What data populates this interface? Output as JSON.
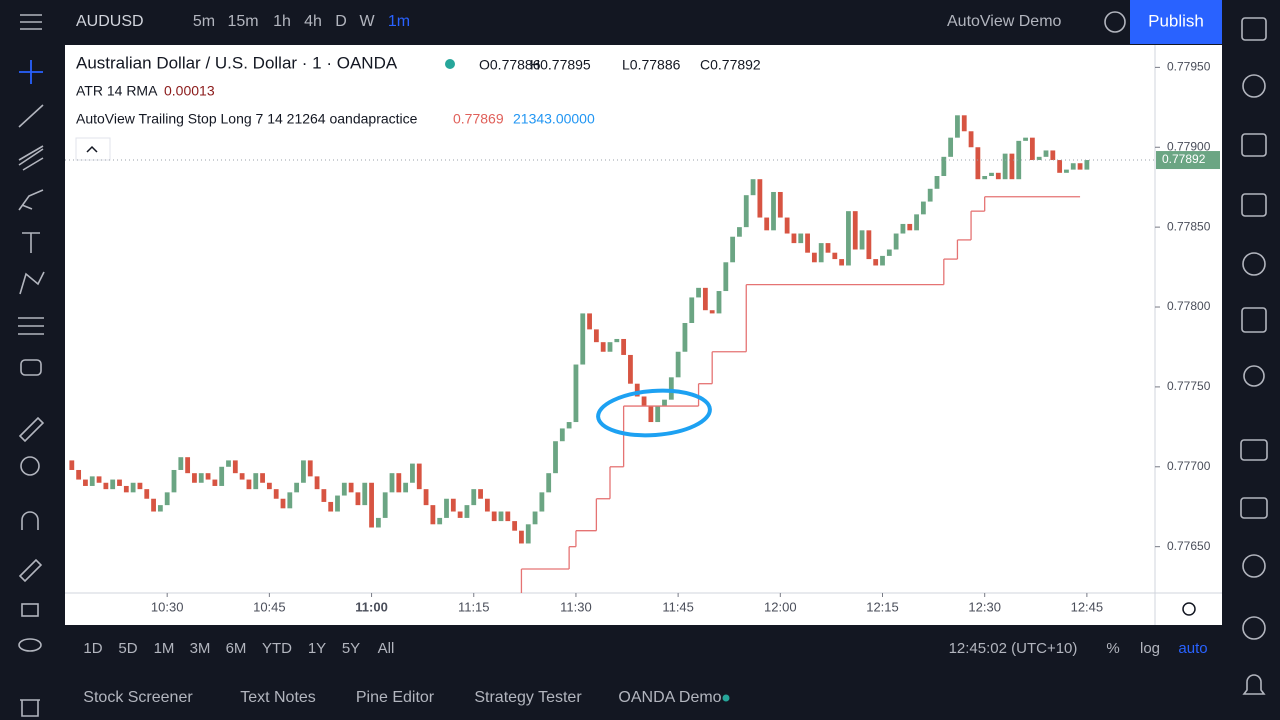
{
  "ui": {
    "symbol": "AUDUSD",
    "intervals": [
      "5m",
      "15m",
      "1h",
      "4h",
      "D",
      "W",
      "1m"
    ],
    "layout_name": "AutoView Demo",
    "publish": "Publish",
    "ranges": [
      "1D",
      "5D",
      "1M",
      "3M",
      "6M",
      "YTD",
      "1Y",
      "5Y",
      "All"
    ],
    "clock": "12:45:02 (UTC+10)",
    "scale_options": [
      "%",
      "log",
      "auto"
    ],
    "tabs": [
      "Stock Screener",
      "Text Notes",
      "Pine Editor",
      "Strategy Tester",
      "OANDA Demo"
    ]
  },
  "legend": {
    "title": "Australian Dollar / U.S. Dollar · 1 · OANDA",
    "ohlc": [
      "O0.77886",
      "H0.77895",
      "L0.77886",
      "C0.77892"
    ],
    "atr_name": "ATR 14 RMA",
    "atr_value": "0.00013",
    "stop_name": "AutoView Trailing Stop Long 7 14 21264 oandapractice",
    "stop_value": "0.77869",
    "stop_value2": "21343.00000"
  },
  "chart_data": {
    "type": "candlestick",
    "up_color": "#6ba583",
    "down_color": "#d75442",
    "x": [
      "10:16",
      "10:17",
      "10:18",
      "10:19",
      "10:20",
      "10:21",
      "10:22",
      "10:23",
      "10:24",
      "10:25",
      "10:26",
      "10:27",
      "10:28",
      "10:29",
      "10:30",
      "10:31",
      "10:32",
      "10:33",
      "10:34",
      "10:35",
      "10:36",
      "10:37",
      "10:38",
      "10:39",
      "10:40",
      "10:41",
      "10:42",
      "10:43",
      "10:44",
      "10:45",
      "10:46",
      "10:47",
      "10:48",
      "10:49",
      "10:50",
      "10:51",
      "10:52",
      "10:53",
      "10:54",
      "10:55",
      "10:56",
      "10:57",
      "10:58",
      "10:59",
      "11:00",
      "11:01",
      "11:02",
      "11:03",
      "11:04",
      "11:05",
      "11:06",
      "11:07",
      "11:08",
      "11:09",
      "11:10",
      "11:11",
      "11:12",
      "11:13",
      "11:14",
      "11:15",
      "11:16",
      "11:17",
      "11:18",
      "11:19",
      "11:20",
      "11:21",
      "11:22",
      "11:23",
      "11:24",
      "11:25",
      "11:26",
      "11:27",
      "11:28",
      "11:29",
      "11:30",
      "11:31",
      "11:32",
      "11:33",
      "11:34",
      "11:35",
      "11:36",
      "11:37",
      "11:38",
      "11:39",
      "11:40",
      "11:41",
      "11:42",
      "11:43",
      "11:44",
      "11:45",
      "11:46",
      "11:47",
      "11:48",
      "11:49",
      "11:50",
      "11:51",
      "11:52",
      "11:53",
      "11:54",
      "11:55",
      "11:56",
      "11:57",
      "11:58",
      "11:59",
      "12:00",
      "12:01",
      "12:02",
      "12:03",
      "12:04",
      "12:05",
      "12:06",
      "12:07",
      "12:08",
      "12:09",
      "12:10",
      "12:11",
      "12:12",
      "12:13",
      "12:14",
      "12:15",
      "12:16",
      "12:17",
      "12:18",
      "12:19",
      "12:20",
      "12:21",
      "12:22",
      "12:23",
      "12:24",
      "12:25",
      "12:26",
      "12:27",
      "12:28",
      "12:29",
      "12:30",
      "12:31",
      "12:32",
      "12:33",
      "12:34",
      "12:35",
      "12:36",
      "12:37",
      "12:38",
      "12:39",
      "12:40",
      "12:41",
      "12:42",
      "12:43",
      "12:44",
      "12:45"
    ],
    "open": [
      0.77704,
      0.77698,
      0.77692,
      0.77688,
      0.77694,
      0.7769,
      0.77686,
      0.77692,
      0.77688,
      0.77684,
      0.7769,
      0.77686,
      0.7768,
      0.77672,
      0.77676,
      0.77684,
      0.77698,
      0.77706,
      0.77696,
      0.7769,
      0.77696,
      0.77692,
      0.77688,
      0.777,
      0.77704,
      0.77696,
      0.77692,
      0.77686,
      0.77696,
      0.7769,
      0.77686,
      0.7768,
      0.77674,
      0.77684,
      0.7769,
      0.77704,
      0.77694,
      0.77686,
      0.77678,
      0.77672,
      0.77682,
      0.7769,
      0.77684,
      0.77676,
      0.7769,
      0.77662,
      0.77668,
      0.77684,
      0.77696,
      0.77684,
      0.7769,
      0.77702,
      0.77686,
      0.77676,
      0.77664,
      0.77668,
      0.7768,
      0.77672,
      0.77668,
      0.77676,
      0.77686,
      0.7768,
      0.77672,
      0.77666,
      0.77672,
      0.77666,
      0.7766,
      0.77652,
      0.77664,
      0.77672,
      0.77684,
      0.77696,
      0.77716,
      0.77724,
      0.77728,
      0.77764,
      0.77796,
      0.77786,
      0.77778,
      0.77772,
      0.77778,
      0.7778,
      0.7777,
      0.77752,
      0.77744,
      0.77738,
      0.77728,
      0.77738,
      0.77742,
      0.77756,
      0.77772,
      0.7779,
      0.77806,
      0.77812,
      0.77798,
      0.77796,
      0.7781,
      0.77828,
      0.77844,
      0.7785,
      0.7787,
      0.7788,
      0.77856,
      0.77848,
      0.77872,
      0.77856,
      0.77846,
      0.7784,
      0.77846,
      0.77834,
      0.77828,
      0.7784,
      0.77834,
      0.7783,
      0.77826,
      0.7786,
      0.77836,
      0.77848,
      0.7783,
      0.77826,
      0.77832,
      0.77836,
      0.77846,
      0.77852,
      0.77848,
      0.77858,
      0.77866,
      0.77874,
      0.77882,
      0.77894,
      0.77906,
      0.7792,
      0.7791,
      0.779,
      0.7788,
      0.77882,
      0.77884,
      0.7788,
      0.77896,
      0.7788,
      0.77904,
      0.77906,
      0.77892,
      0.77894,
      0.77898,
      0.77892,
      0.77884,
      0.77886,
      0.7789,
      0.77886
    ],
    "close": [
      0.77698,
      0.77692,
      0.77688,
      0.77694,
      0.7769,
      0.77686,
      0.77692,
      0.77688,
      0.77684,
      0.7769,
      0.77686,
      0.7768,
      0.77672,
      0.77676,
      0.77684,
      0.77698,
      0.77706,
      0.77696,
      0.7769,
      0.77696,
      0.77692,
      0.77688,
      0.777,
      0.77704,
      0.77696,
      0.77692,
      0.77686,
      0.77696,
      0.7769,
      0.77686,
      0.7768,
      0.77674,
      0.77684,
      0.7769,
      0.77704,
      0.77694,
      0.77686,
      0.77678,
      0.77672,
      0.77682,
      0.7769,
      0.77684,
      0.77676,
      0.7769,
      0.77662,
      0.77668,
      0.77684,
      0.77696,
      0.77684,
      0.7769,
      0.77702,
      0.77686,
      0.77676,
      0.77664,
      0.77668,
      0.7768,
      0.77672,
      0.77668,
      0.77676,
      0.77686,
      0.7768,
      0.77672,
      0.77666,
      0.77672,
      0.77666,
      0.7766,
      0.77652,
      0.77664,
      0.77672,
      0.77684,
      0.77696,
      0.77716,
      0.77724,
      0.77728,
      0.77764,
      0.77796,
      0.77786,
      0.77778,
      0.77772,
      0.77778,
      0.7778,
      0.7777,
      0.77752,
      0.77744,
      0.77738,
      0.77728,
      0.77738,
      0.77742,
      0.77756,
      0.77772,
      0.7779,
      0.77806,
      0.77812,
      0.77798,
      0.77796,
      0.7781,
      0.77828,
      0.77844,
      0.7785,
      0.7787,
      0.7788,
      0.77856,
      0.77848,
      0.77872,
      0.77856,
      0.77846,
      0.7784,
      0.77846,
      0.77834,
      0.77828,
      0.7784,
      0.77834,
      0.7783,
      0.77826,
      0.7786,
      0.77836,
      0.77848,
      0.7783,
      0.77826,
      0.77832,
      0.77836,
      0.77846,
      0.77852,
      0.77848,
      0.77858,
      0.77866,
      0.77874,
      0.77882,
      0.77894,
      0.77906,
      0.7792,
      0.7791,
      0.779,
      0.7788,
      0.77882,
      0.77884,
      0.7788,
      0.77896,
      0.7788,
      0.77904,
      0.77906,
      0.77892,
      0.77894,
      0.77898,
      0.77892,
      0.77884,
      0.77886,
      0.7789,
      0.77886,
      0.77892
    ],
    "stop": {
      "color": "#e57373",
      "x": [
        "11:22",
        "11:29",
        "11:30",
        "11:33",
        "11:35",
        "11:37",
        "11:48",
        "11:50",
        "11:55",
        "12:24",
        "12:26",
        "12:28",
        "12:30",
        "12:44"
      ],
      "values": [
        0.77636,
        0.7765,
        0.7766,
        0.7768,
        0.777,
        0.77738,
        0.77752,
        0.77772,
        0.77814,
        0.7783,
        0.77842,
        0.7786,
        0.77869,
        0.77869
      ]
    },
    "xlim": [
      "10:15",
      "12:55"
    ],
    "xticks": [
      "10:30",
      "10:45",
      "11:00",
      "11:15",
      "11:30",
      "11:45",
      "12:00",
      "12:15",
      "12:30",
      "12:45"
    ],
    "ylim": [
      0.77621,
      0.77964
    ],
    "yticks": [
      {
        "value": 0.7765,
        "label": "0.77650"
      },
      {
        "value": 0.777,
        "label": "0.77700"
      },
      {
        "value": 0.7775,
        "label": "0.77750"
      },
      {
        "value": 0.778,
        "label": "0.77800"
      },
      {
        "value": 0.7785,
        "label": "0.77850"
      },
      {
        "value": 0.779,
        "label": "0.77900"
      },
      {
        "value": 0.7795,
        "label": "0.77950"
      }
    ]
  }
}
